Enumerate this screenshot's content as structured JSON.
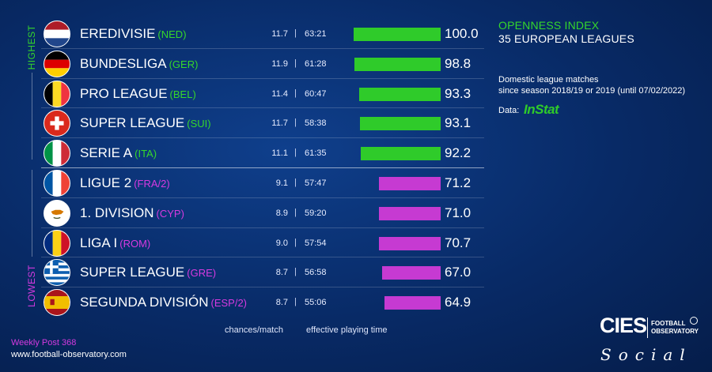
{
  "panel": {
    "title_line1": "OPENNESS INDEX",
    "title_line2": "35 EUROPEAN LEAGUES",
    "desc_line1": "Domestic league matches",
    "desc_line2": "since season 2018/19 or 2019 (until 07/02/2022)",
    "data_label": "Data:",
    "data_source": "InStat"
  },
  "side_labels": {
    "highest": "HIGHEST",
    "lowest": "LOWEST"
  },
  "columns": {
    "chances": "chances/match",
    "time": "effective playing time"
  },
  "separator": "|",
  "footer": {
    "post": "Weekly Post 368",
    "url": "www.football-observatory.com"
  },
  "logo": {
    "brand": "CIES",
    "line1": "FOOTBALL",
    "line2": "OBSERVATORY",
    "social": "Social"
  },
  "colors": {
    "top": "#2fcb2a",
    "bottom": "#c63ad2",
    "background": "#082a66"
  },
  "chart_data": {
    "type": "bar",
    "title": "OPENNESS INDEX",
    "subtitle": "35 EUROPEAN LEAGUES",
    "value_range": [
      0,
      100
    ],
    "rows": [
      {
        "league": "EREDIVISIE",
        "code": "(NED)",
        "flag": "netherlands-flag",
        "group": "top",
        "chances": "11.7",
        "time": "63:21",
        "value": 100.0,
        "value_label": "100.0"
      },
      {
        "league": "BUNDESLIGA",
        "code": "(GER)",
        "flag": "germany-flag",
        "group": "top",
        "chances": "11.9",
        "time": "61:28",
        "value": 98.8,
        "value_label": "98.8"
      },
      {
        "league": "PRO LEAGUE",
        "code": "(BEL)",
        "flag": "belgium-flag",
        "group": "top",
        "chances": "11.4",
        "time": "60:47",
        "value": 93.3,
        "value_label": "93.3"
      },
      {
        "league": "SUPER LEAGUE",
        "code": "(SUI)",
        "flag": "switzerland-flag",
        "group": "top",
        "chances": "11.7",
        "time": "58:38",
        "value": 93.1,
        "value_label": "93.1"
      },
      {
        "league": "SERIE A",
        "code": "(ITA)",
        "flag": "italy-flag",
        "group": "top",
        "chances": "11.1",
        "time": "61:35",
        "value": 92.2,
        "value_label": "92.2"
      },
      {
        "league": "LIGUE 2",
        "code": "(FRA/2)",
        "flag": "france-flag",
        "group": "bottom",
        "chances": "9.1",
        "time": "57:47",
        "value": 71.2,
        "value_label": "71.2"
      },
      {
        "league": "1. DIVISION",
        "code": "(CYP)",
        "flag": "cyprus-flag",
        "group": "bottom",
        "chances": "8.9",
        "time": "59:20",
        "value": 71.0,
        "value_label": "71.0"
      },
      {
        "league": "LIGA I",
        "code": "(ROM)",
        "flag": "romania-flag",
        "group": "bottom",
        "chances": "9.0",
        "time": "57:54",
        "value": 70.7,
        "value_label": "70.7"
      },
      {
        "league": "SUPER LEAGUE",
        "code": "(GRE)",
        "flag": "greece-flag",
        "group": "bottom",
        "chances": "8.7",
        "time": "56:58",
        "value": 67.0,
        "value_label": "67.0"
      },
      {
        "league": "SEGUNDA DIVISIÓN",
        "code": "(ESP/2)",
        "flag": "spain-flag",
        "group": "bottom",
        "chances": "8.7",
        "time": "55:06",
        "value": 64.9,
        "value_label": "64.9"
      }
    ]
  }
}
